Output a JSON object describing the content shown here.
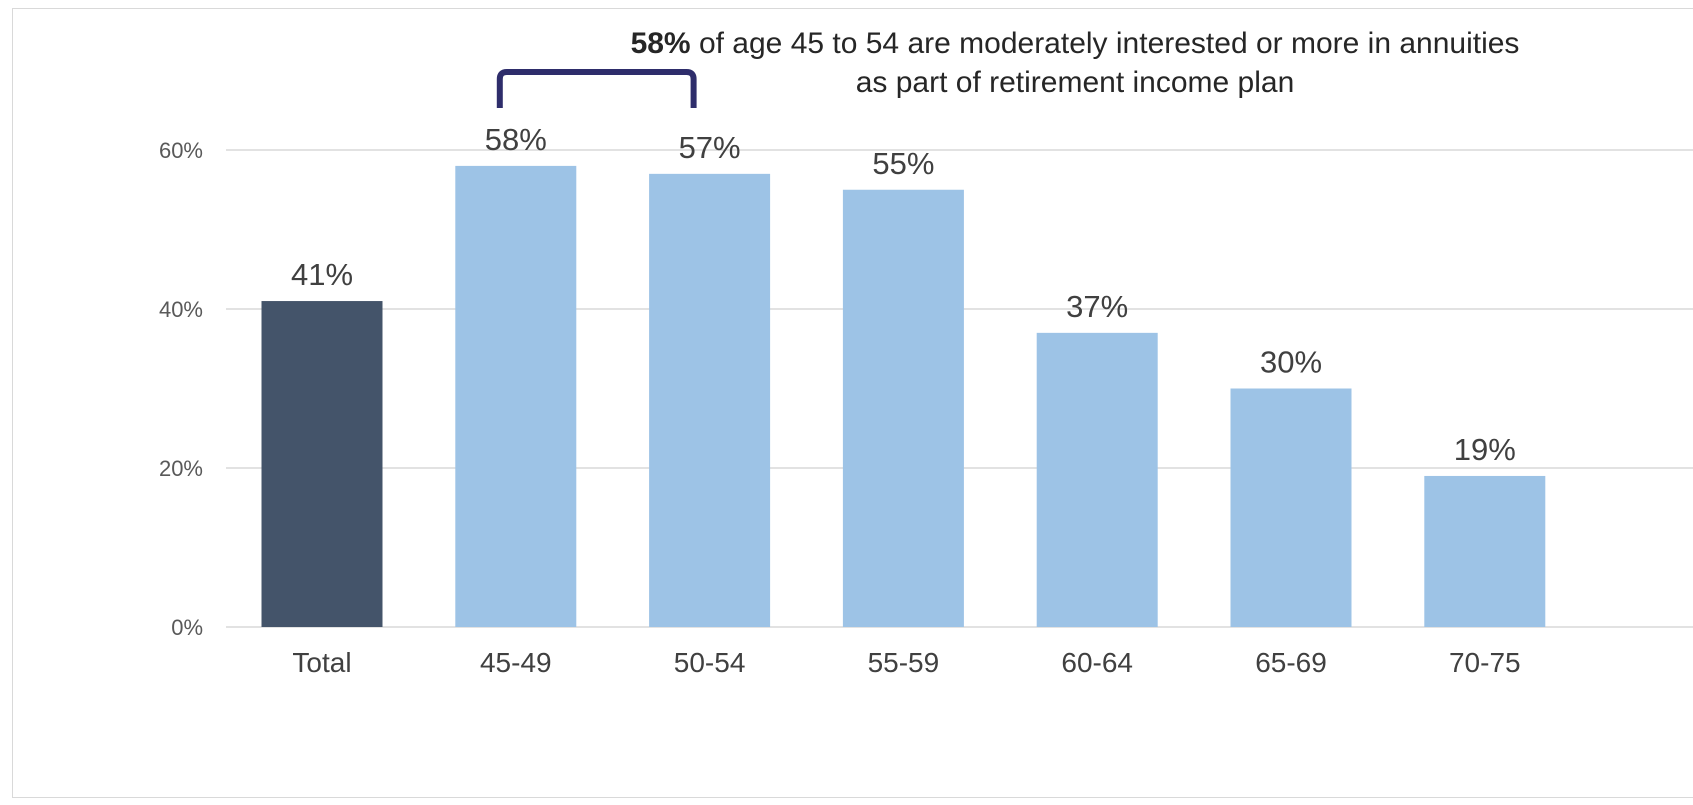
{
  "chart_data": {
    "type": "bar",
    "categories": [
      "Total",
      "45-49",
      "50-54",
      "55-59",
      "60-64",
      "65-69",
      "70-75"
    ],
    "values": [
      41,
      58,
      57,
      55,
      37,
      30,
      19
    ],
    "value_labels": [
      "41%",
      "58%",
      "57%",
      "55%",
      "37%",
      "30%",
      "19%"
    ],
    "highlight_category": "Total",
    "ylim": [
      0,
      60
    ],
    "yticks": [
      0,
      20,
      40,
      60
    ],
    "ytick_labels": [
      "0%",
      "20%",
      "40%",
      "60%"
    ],
    "grid": true,
    "legend": "none",
    "colors": {
      "highlight": "#44546a",
      "bar": "#9dc3e6",
      "bracket": "#2e2d6b"
    },
    "annotation": {
      "bold": "58%",
      "line1_rest": " of age 45 to 54 are moderately interested or more in annuities",
      "line2": "as part of retirement income plan",
      "bracket_categories": [
        "45-49",
        "50-54"
      ]
    }
  }
}
